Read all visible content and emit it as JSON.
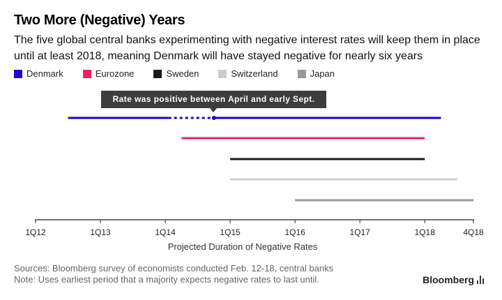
{
  "title": "Two More (Negative) Years",
  "subtitle": "The five global central banks experimenting with negative interest rates will keep them in place until at least 2018, meaning Denmark will have stayed negative for nearly six years",
  "legend": [
    {
      "label": "Denmark",
      "color": "#2200cc"
    },
    {
      "label": "Eurozone",
      "color": "#ee1f6b"
    },
    {
      "label": "Sweden",
      "color": "#1a1a1a"
    },
    {
      "label": "Switzerland",
      "color": "#cccccc"
    },
    {
      "label": "Japan",
      "color": "#999999"
    }
  ],
  "annotation": "Rate was positive between April and early Sept.",
  "chart_data": {
    "type": "timeline",
    "title": "Two More (Negative) Years",
    "xlabel": "Projected Duration of Negative Rates",
    "x_ticks": [
      "1Q12",
      "1Q13",
      "1Q14",
      "1Q15",
      "1Q16",
      "1Q17",
      "1Q18",
      "4Q18"
    ],
    "x_range": [
      2012.0,
      2018.75
    ],
    "series": [
      {
        "name": "Denmark",
        "color": "#2200cc",
        "start": 2012.5,
        "end": 2018.25,
        "gap": {
          "start": 2014.05,
          "end": 2014.75
        }
      },
      {
        "name": "Eurozone",
        "color": "#ee1f6b",
        "start": 2014.25,
        "end": 2018.0
      },
      {
        "name": "Sweden",
        "color": "#1a1a1a",
        "start": 2015.0,
        "end": 2018.0
      },
      {
        "name": "Switzerland",
        "color": "#cccccc",
        "start": 2015.0,
        "end": 2018.5
      },
      {
        "name": "Japan",
        "color": "#999999",
        "start": 2016.0,
        "end": 2018.75
      }
    ]
  },
  "source": "Sources: Bloomberg survey of economists conducted Feb. 12-18, central banks",
  "note": "Note: Uses earliest period that a majority expects negative rates to last until.",
  "brand": "Bloomberg"
}
